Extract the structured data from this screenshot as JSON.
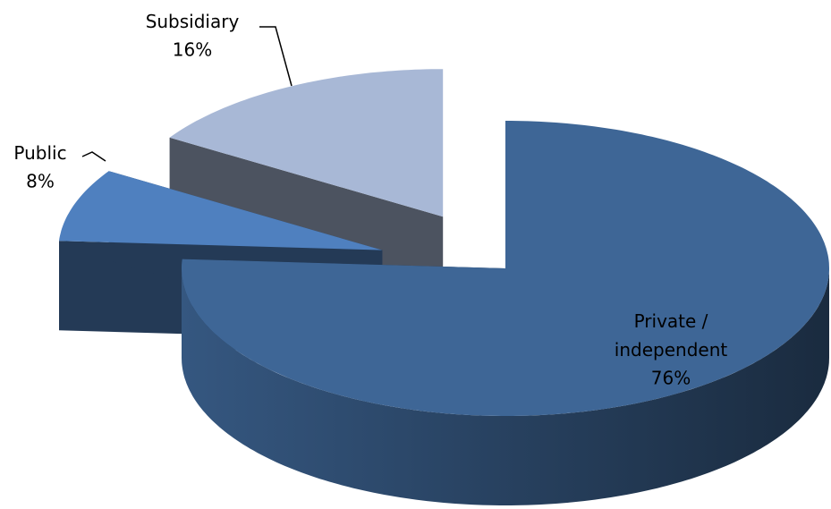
{
  "chart_data": {
    "type": "pie3d",
    "categories": [
      "Private / independent",
      "Public",
      "Subsidiary"
    ],
    "values": [
      76,
      8,
      16
    ],
    "value_labels": [
      "76%",
      "8%",
      "16%"
    ],
    "colors": [
      "#3e6696",
      "#4f80bf",
      "#a8b8d6"
    ]
  }
}
